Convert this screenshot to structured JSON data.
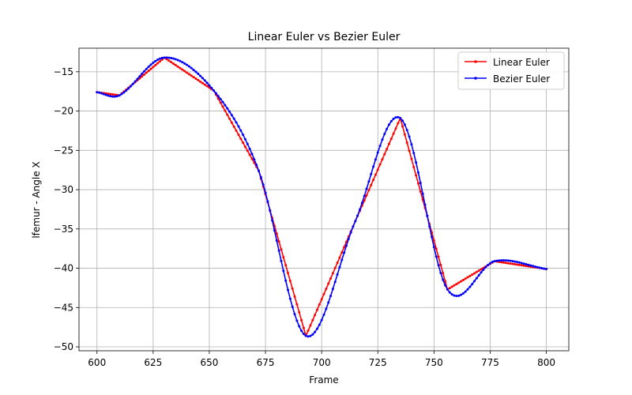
{
  "chart_data": {
    "type": "line",
    "title": "Linear Euler vs Bezier Euler",
    "xlabel": "Frame",
    "ylabel": "lfemur - Angle X",
    "xlim": [
      592,
      810
    ],
    "ylim": [
      -50.5,
      -12
    ],
    "xticks": [
      600,
      625,
      650,
      675,
      700,
      725,
      750,
      775,
      800
    ],
    "yticks": [
      -15,
      -20,
      -25,
      -30,
      -35,
      -40,
      -45,
      -50
    ],
    "grid": true,
    "legend_position": "top-right",
    "series": [
      {
        "name": "Linear Euler",
        "color": "#ff0000",
        "key_x": [
          600,
          610,
          630,
          652,
          672,
          693,
          715,
          735,
          756,
          777,
          800
        ],
        "key_y": [
          -17.6,
          -18.0,
          -13.2,
          -17.4,
          -27.6,
          -48.6,
          -34.0,
          -20.9,
          -42.7,
          -39.1,
          -40.1
        ]
      },
      {
        "name": "Bezier Euler",
        "color": "#0000ff",
        "key_x": [
          600,
          610,
          630,
          652,
          672,
          693,
          715,
          735,
          756,
          777,
          800
        ],
        "key_y": [
          -17.6,
          -18.0,
          -13.2,
          -17.4,
          -27.6,
          -48.6,
          -34.0,
          -20.9,
          -42.7,
          -39.1,
          -40.1
        ]
      }
    ]
  }
}
